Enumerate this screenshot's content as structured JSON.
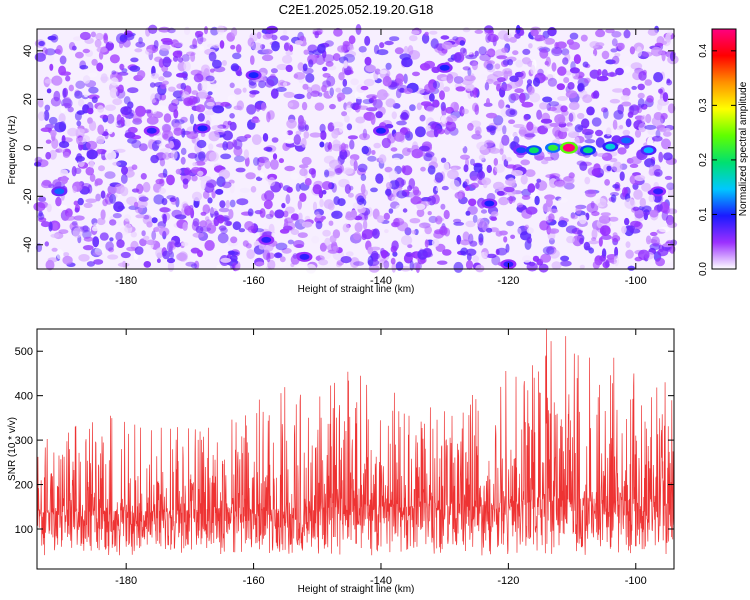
{
  "figure": {
    "title": "C2E1.2025.052.19.20.G18"
  },
  "chart_data": [
    {
      "type": "heatmap",
      "title": "C2E1.2025.052.19.20.G18",
      "xlabel": "Height of straight line (km)",
      "ylabel": "Frequency (Hz)",
      "xlim": [
        -194,
        -94
      ],
      "ylim": [
        -50,
        49
      ],
      "x_ticks": [
        -180,
        -160,
        -140,
        -120,
        -100
      ],
      "y_ticks": [
        -40,
        -20,
        0,
        20,
        40
      ],
      "colorbar": {
        "label": "Normalized spectral amplitude",
        "range": [
          0.0,
          0.44
        ],
        "ticks": [
          0.0,
          0.1,
          0.2,
          0.3,
          0.4
        ],
        "tick_labels": [
          "0.0",
          "0.1",
          "0.2",
          "0.3",
          "0.4"
        ],
        "colormap": [
          "#ffffff",
          "#9b30ff",
          "#1a1aff",
          "#00c8ff",
          "#00e070",
          "#60ff00",
          "#ffff00",
          "#ff9000",
          "#ff0000",
          "#ff0080"
        ]
      },
      "background_level": [
        0.0,
        0.08
      ],
      "hotspots": [
        {
          "x": -110.5,
          "y": 0.0,
          "value": 0.44
        },
        {
          "x": -113.0,
          "y": 0.0,
          "value": 0.22
        },
        {
          "x": -116.0,
          "y": -1.0,
          "value": 0.2
        },
        {
          "x": -107.5,
          "y": -1.0,
          "value": 0.19
        },
        {
          "x": -104.0,
          "y": 0.5,
          "value": 0.16
        },
        {
          "x": -98.0,
          "y": -1.0,
          "value": 0.14
        },
        {
          "x": -101.5,
          "y": 3.0,
          "value": 0.12
        },
        {
          "x": -118.0,
          "y": -1.0,
          "value": 0.11
        },
        {
          "x": -190.5,
          "y": -18.0,
          "value": 0.12
        },
        {
          "x": -160.0,
          "y": 30.0,
          "value": 0.1
        },
        {
          "x": -130.0,
          "y": 33.0,
          "value": 0.1
        },
        {
          "x": -140.0,
          "y": 7.0,
          "value": 0.1
        },
        {
          "x": -123.0,
          "y": -23.0,
          "value": 0.1
        },
        {
          "x": -176.0,
          "y": 7.0,
          "value": 0.09
        },
        {
          "x": -168.0,
          "y": 8.0,
          "value": 0.1
        },
        {
          "x": -96.5,
          "y": -18.0,
          "value": 0.09
        },
        {
          "x": -152.0,
          "y": -45.0,
          "value": 0.09
        },
        {
          "x": -120.0,
          "y": -48.0,
          "value": 0.09
        },
        {
          "x": -158.0,
          "y": -38.0,
          "value": 0.09
        }
      ]
    },
    {
      "type": "line",
      "xlabel": "Height of straight line (km)",
      "ylabel": "SNR (10 * v/v)",
      "xlim": [
        -194,
        -94
      ],
      "ylim": [
        10,
        550
      ],
      "x_ticks": [
        -180,
        -160,
        -140,
        -120,
        -100
      ],
      "y_ticks": [
        100,
        200,
        300,
        400,
        500
      ],
      "series": [
        {
          "color": "#ee3333",
          "sample_step_km": 0.05,
          "envelope_x": [
            -194,
            -184,
            -174,
            -164,
            -154,
            -144,
            -134,
            -124,
            -114,
            -104,
            -94
          ],
          "median": [
            135,
            140,
            140,
            140,
            145,
            150,
            150,
            150,
            170,
            165,
            150
          ],
          "lower": [
            40,
            40,
            40,
            40,
            40,
            40,
            40,
            40,
            40,
            40,
            40
          ],
          "upper": [
            310,
            360,
            330,
            360,
            430,
            460,
            380,
            420,
            550,
            500,
            420
          ]
        }
      ]
    }
  ]
}
